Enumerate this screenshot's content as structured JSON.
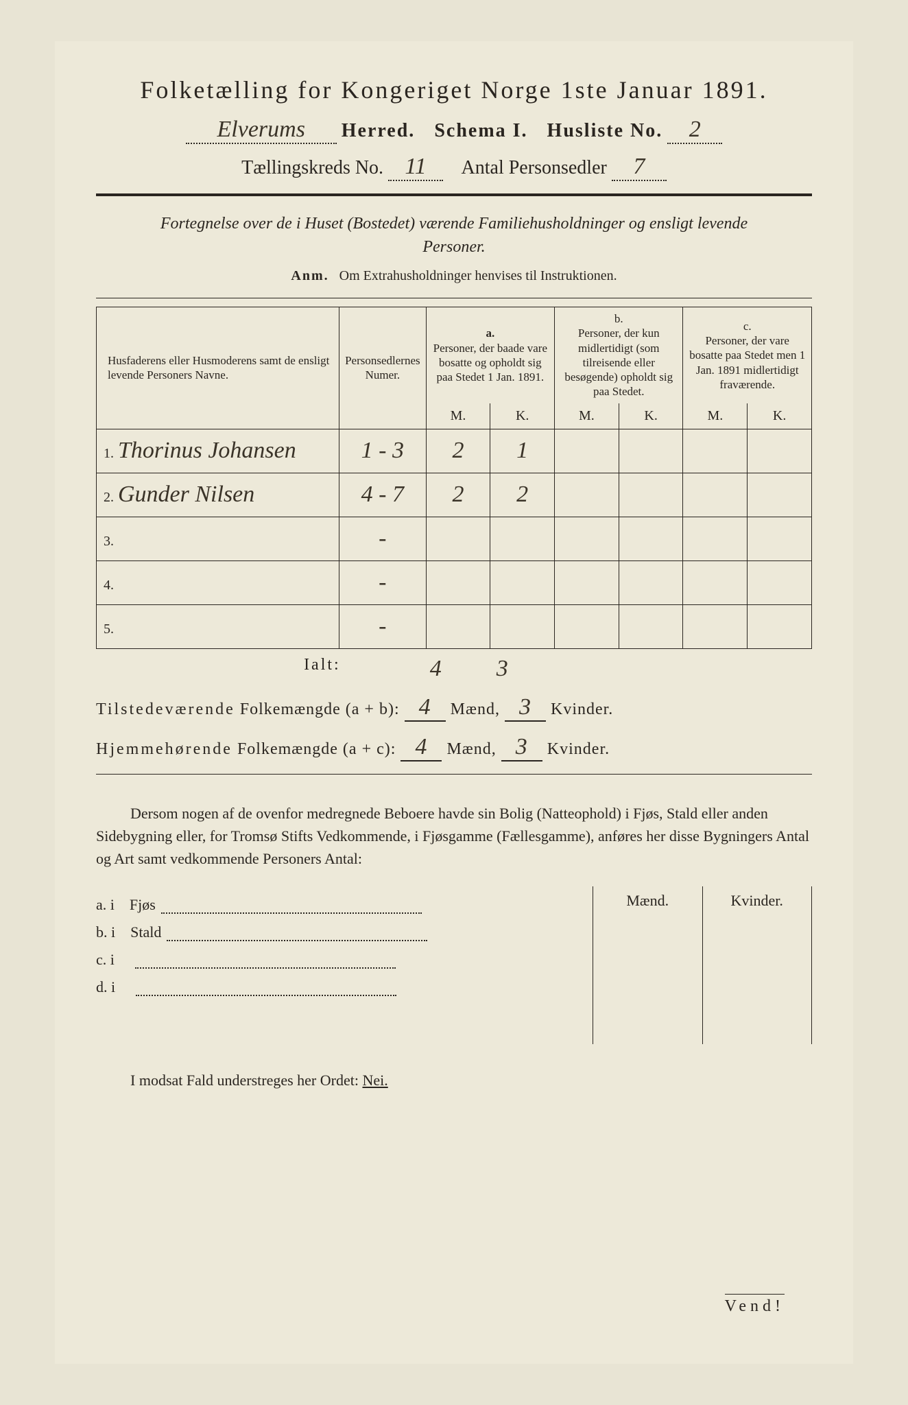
{
  "colors": {
    "paper": "#ede9d9",
    "ink": "#2a2520",
    "handwriting": "#3a3328"
  },
  "header": {
    "title": "Folketælling for Kongeriget Norge 1ste Januar 1891.",
    "herred_value": "Elverums",
    "herred_label": "Herred.",
    "schema_label": "Schema I.",
    "husliste_label": "Husliste No.",
    "husliste_value": "2",
    "kreds_label": "Tællingskreds No.",
    "kreds_value": "11",
    "antal_label": "Antal Personsedler",
    "antal_value": "7"
  },
  "intro": "Fortegnelse over de i Huset (Bostedet) værende Familiehusholdninger og ensligt levende Personer.",
  "anm_label": "Anm.",
  "anm_text": "Om Extrahusholdninger henvises til Instruktionen.",
  "table": {
    "col_names": "Husfaderens eller Husmoderens samt de ensligt levende Personers Navne.",
    "col_numer": "Personsedlernes Numer.",
    "col_a_label": "a.",
    "col_a": "Personer, der baade vare bosatte og opholdt sig paa Stedet 1 Jan. 1891.",
    "col_b_label": "b.",
    "col_b": "Personer, der kun midlertidigt (som tilreisende eller besøgende) opholdt sig paa Stedet.",
    "col_c_label": "c.",
    "col_c": "Personer, der vare bosatte paa Stedet men 1 Jan. 1891 midlertidigt fraværende.",
    "mk_m": "M.",
    "mk_k": "K.",
    "rows": [
      {
        "n": "1.",
        "name": "Thorinus Johansen",
        "numer": "1 - 3",
        "a_m": "2",
        "a_k": "1",
        "b_m": "",
        "b_k": "",
        "c_m": "",
        "c_k": ""
      },
      {
        "n": "2.",
        "name": "Gunder Nilsen",
        "numer": "4 - 7",
        "a_m": "2",
        "a_k": "2",
        "b_m": "",
        "b_k": "",
        "c_m": "",
        "c_k": ""
      },
      {
        "n": "3.",
        "name": "",
        "numer": "-",
        "a_m": "",
        "a_k": "",
        "b_m": "",
        "b_k": "",
        "c_m": "",
        "c_k": ""
      },
      {
        "n": "4.",
        "name": "",
        "numer": "-",
        "a_m": "",
        "a_k": "",
        "b_m": "",
        "b_k": "",
        "c_m": "",
        "c_k": ""
      },
      {
        "n": "5.",
        "name": "",
        "numer": "-",
        "a_m": "",
        "a_k": "",
        "b_m": "",
        "b_k": "",
        "c_m": "",
        "c_k": ""
      }
    ],
    "ialt_label": "Ialt:",
    "ialt_m": "4",
    "ialt_k": "3"
  },
  "summary": {
    "line1_lead": "Tilstedeværende",
    "line1_mid": "Folkemængde (a + b):",
    "line1_m": "4",
    "line1_k": "3",
    "line2_lead": "Hjemmehørende",
    "line2_mid": "Folkemængde (a + c):",
    "line2_m": "4",
    "line2_k": "3",
    "maend": "Mænd,",
    "kvinder": "Kvinder."
  },
  "paragraph": "Dersom nogen af de ovenfor medregnede Beboere havde sin Bolig (Natteophold) i Fjøs, Stald eller anden Sidebygning eller, for Tromsø Stifts Vedkommende, i Fjøsgamme (Fællesgamme), anføres her disse Bygningers Antal og Art samt vedkommende Personers Antal:",
  "buildings": {
    "mk_m": "Mænd.",
    "mk_k": "Kvinder.",
    "rows": [
      {
        "key": "a.  i",
        "label": "Fjøs"
      },
      {
        "key": "b.  i",
        "label": "Stald"
      },
      {
        "key": "c.  i",
        "label": ""
      },
      {
        "key": "d.  i",
        "label": ""
      }
    ]
  },
  "footer": {
    "text_pre": "I modsat Fald understreges her Ordet:",
    "nei": "Nei.",
    "vend": "Vend!"
  }
}
